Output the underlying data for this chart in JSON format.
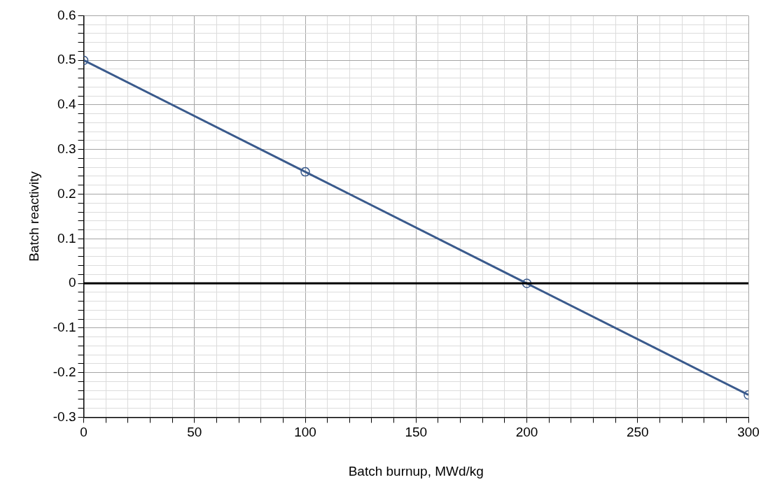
{
  "chart_data": {
    "type": "line",
    "xlabel": "Batch burnup, MWd/kg",
    "ylabel": "Batch reactivity",
    "x": [
      0,
      100,
      200,
      300
    ],
    "series": [
      {
        "color": "#3a5a8c",
        "values": [
          0.5,
          0.25,
          0,
          -0.25
        ]
      }
    ],
    "xlim": [
      0,
      300
    ],
    "ylim": [
      -0.3,
      0.6
    ],
    "xticks": [
      0,
      {
        "value": 10,
        "label": null
      },
      {
        "value": 20,
        "label": null
      },
      {
        "value": 30,
        "label": null
      },
      {
        "value": 40,
        "label": null
      },
      50,
      {
        "value": 60,
        "label": null
      },
      {
        "value": 70,
        "label": null
      },
      {
        "value": 80,
        "label": null
      },
      {
        "value": 90,
        "label": null
      },
      100,
      {
        "value": 110,
        "label": null
      },
      {
        "value": 120,
        "label": null
      },
      {
        "value": 130,
        "label": null
      },
      {
        "value": 140,
        "label": null
      },
      150,
      {
        "value": 160,
        "label": null
      },
      {
        "value": 170,
        "label": null
      },
      {
        "value": 180,
        "label": null
      },
      {
        "value": 190,
        "label": null
      },
      200,
      {
        "value": 210,
        "label": null
      },
      {
        "value": 220,
        "label": null
      },
      {
        "value": 230,
        "label": null
      },
      {
        "value": 240,
        "label": null
      },
      250,
      {
        "value": 260,
        "label": null
      },
      {
        "value": 270,
        "label": null
      },
      {
        "value": 280,
        "label": null
      },
      {
        "value": 290,
        "label": null
      },
      300
    ],
    "yticks": [
      -0.3,
      {
        "value": -0.28,
        "label": null
      },
      {
        "value": -0.26,
        "label": null
      },
      {
        "value": -0.24,
        "label": null
      },
      {
        "value": -0.22,
        "label": null
      },
      -0.2,
      {
        "value": -0.18,
        "label": null
      },
      {
        "value": -0.16,
        "label": null
      },
      {
        "value": -0.14,
        "label": null
      },
      {
        "value": -0.12,
        "label": null
      },
      -0.1,
      {
        "value": -0.08,
        "label": null
      },
      {
        "value": -0.06,
        "label": null
      },
      {
        "value": -0.04,
        "label": null
      },
      {
        "value": -0.02,
        "label": null
      },
      0,
      {
        "value": 0.02,
        "label": null
      },
      {
        "value": 0.04,
        "label": null
      },
      {
        "value": 0.06,
        "label": null
      },
      {
        "value": 0.08,
        "label": null
      },
      0.1,
      {
        "value": 0.12,
        "label": null
      },
      {
        "value": 0.14,
        "label": null
      },
      {
        "value": 0.16,
        "label": null
      },
      {
        "value": 0.18,
        "label": null
      },
      0.2,
      {
        "value": 0.22,
        "label": null
      },
      {
        "value": 0.24,
        "label": null
      },
      {
        "value": 0.26,
        "label": null
      },
      {
        "value": 0.28,
        "label": null
      },
      0.3,
      {
        "value": 0.32,
        "label": null
      },
      {
        "value": 0.34,
        "label": null
      },
      {
        "value": 0.36,
        "label": null
      },
      {
        "value": 0.38,
        "label": null
      },
      0.4,
      {
        "value": 0.42,
        "label": null
      },
      {
        "value": 0.44,
        "label": null
      },
      {
        "value": 0.46,
        "label": null
      },
      {
        "value": 0.48,
        "label": null
      },
      0.5,
      {
        "value": 0.52,
        "label": null
      },
      {
        "value": 0.54,
        "label": null
      },
      {
        "value": 0.56,
        "label": null
      },
      {
        "value": 0.58,
        "label": null
      },
      0.6
    ],
    "grid": true,
    "marker": "circle",
    "line_style": "solid",
    "ref_lines": [
      {
        "axis": "y",
        "value": 0,
        "color": "#000000"
      }
    ]
  }
}
